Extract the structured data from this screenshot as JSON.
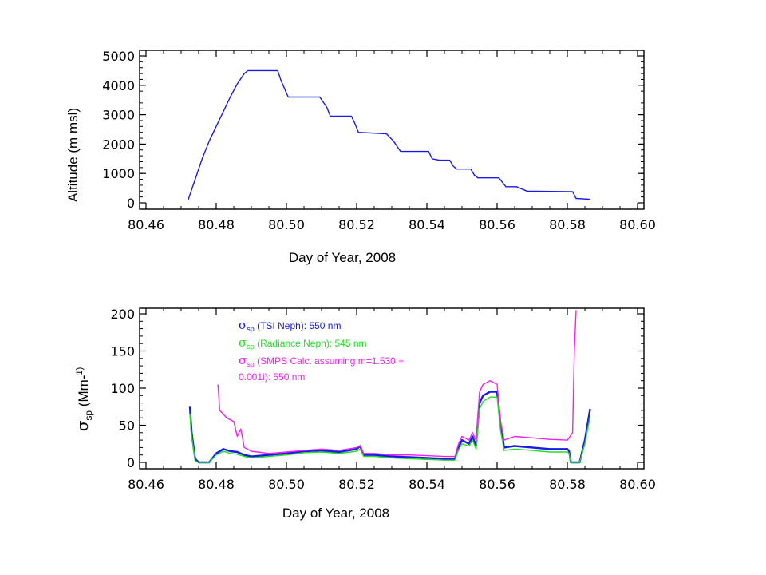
{
  "colors": {
    "tsi": "#1a1ae6",
    "radiance": "#22dd22",
    "smps": "#ee22ee",
    "altitude": "#1a1ae6"
  },
  "chart_data": [
    {
      "type": "line",
      "xlabel": "Day of Year, 2008",
      "ylabel": "Altitude (m msl)",
      "xlim": [
        80.46,
        80.6
      ],
      "ylim": [
        0,
        5000
      ],
      "xticks": [
        "80.46",
        "80.48",
        "80.50",
        "80.52",
        "80.54",
        "80.56",
        "80.58",
        "80.60"
      ],
      "yticks": [
        "0",
        "1000",
        "2000",
        "3000",
        "4000",
        "5000"
      ],
      "series": [
        {
          "x": [
            80.472,
            80.474,
            80.476,
            80.478,
            80.48,
            80.482,
            80.484,
            80.486,
            80.488,
            80.489,
            80.4895,
            80.4975,
            80.4985,
            80.5005,
            80.5015,
            80.5095,
            80.5115,
            80.5125,
            80.5185,
            80.5195,
            80.5205,
            80.5285,
            80.5305,
            80.5325,
            80.5405,
            80.5415,
            80.5435,
            80.5465,
            80.5475,
            80.5485,
            80.5525,
            80.5535,
            80.5545,
            80.5605,
            80.5625,
            80.5655,
            80.5685,
            80.5805,
            80.5815,
            80.5825,
            80.5865
          ],
          "y": [
            100,
            800,
            1500,
            2100,
            2600,
            3100,
            3600,
            4050,
            4400,
            4500,
            4500,
            4500,
            4150,
            3600,
            3600,
            3600,
            3250,
            2950,
            2950,
            2700,
            2400,
            2350,
            2100,
            1750,
            1750,
            1500,
            1450,
            1450,
            1250,
            1150,
            1150,
            950,
            850,
            850,
            550,
            550,
            400,
            380,
            380,
            150,
            120
          ]
        }
      ]
    },
    {
      "type": "line",
      "xlabel": "Day of Year, 2008",
      "ylabel": "σsp (Mm-1)",
      "xlim": [
        80.46,
        80.6
      ],
      "ylim": [
        0,
        200
      ],
      "xticks": [
        "80.46",
        "80.48",
        "80.50",
        "80.52",
        "80.54",
        "80.56",
        "80.58",
        "80.60"
      ],
      "yticks": [
        "0",
        "50",
        "100",
        "150",
        "200"
      ],
      "legend": [
        {
          "sym": "σ",
          "sub": "sp",
          "text": " (TSI Neph):  550 nm"
        },
        {
          "sym": "σ",
          "sub": "sp",
          "text": " (Radiance Neph):  545 nm"
        },
        {
          "sym": "σ",
          "sub": "sp",
          "text": " (SMPS Calc. assuming m=1.530 +"
        },
        {
          "sym": "",
          "sub": "",
          "text": "0.001i):  550 nm"
        }
      ],
      "series": [
        {
          "x": [
            80.4725,
            80.473,
            80.474,
            80.475,
            80.4765,
            80.478,
            80.48,
            80.482,
            80.484,
            80.486,
            80.488,
            80.49,
            80.495,
            80.5,
            80.505,
            80.51,
            80.515,
            80.52,
            80.521,
            80.522,
            80.525,
            80.53,
            80.535,
            80.54,
            80.545,
            80.548,
            80.549,
            80.55,
            80.552,
            80.553,
            80.554,
            80.555,
            80.556,
            80.558,
            80.56,
            80.561,
            80.562,
            80.565,
            80.57,
            80.575,
            80.58,
            80.5805,
            80.581,
            80.5835,
            80.585,
            80.5865
          ],
          "y": [
            75,
            40,
            5,
            0,
            0,
            0,
            12,
            18,
            15,
            14,
            10,
            8,
            10,
            12,
            15,
            16,
            14,
            18,
            22,
            10,
            10,
            8,
            7,
            6,
            5,
            5,
            20,
            30,
            25,
            35,
            22,
            80,
            90,
            95,
            95,
            50,
            20,
            22,
            20,
            18,
            18,
            15,
            0,
            0,
            30,
            72
          ]
        },
        {
          "x": [
            80.4725,
            80.473,
            80.474,
            80.475,
            80.4765,
            80.478,
            80.48,
            80.482,
            80.484,
            80.486,
            80.488,
            80.49,
            80.495,
            80.5,
            80.505,
            80.51,
            80.515,
            80.52,
            80.521,
            80.522,
            80.525,
            80.53,
            80.535,
            80.54,
            80.545,
            80.548,
            80.549,
            80.55,
            80.552,
            80.553,
            80.554,
            80.555,
            80.556,
            80.558,
            80.56,
            80.561,
            80.562,
            80.565,
            80.57,
            80.575,
            80.58,
            80.5805,
            80.581,
            80.5835,
            80.585,
            80.5865
          ],
          "y": [
            65,
            35,
            2,
            0,
            0,
            0,
            10,
            15,
            12,
            11,
            8,
            6,
            8,
            10,
            13,
            14,
            12,
            15,
            18,
            8,
            8,
            6,
            5,
            4,
            3,
            3,
            17,
            25,
            22,
            30,
            18,
            72,
            82,
            88,
            88,
            42,
            16,
            18,
            16,
            14,
            14,
            12,
            0,
            0,
            25,
            62
          ]
        },
        {
          "x": [
            80.4805,
            80.481,
            80.483,
            80.485,
            80.486,
            80.487,
            80.488,
            80.49,
            80.495,
            80.5,
            80.505,
            80.51,
            80.515,
            80.52,
            80.521,
            80.522,
            80.525,
            80.53,
            80.535,
            80.54,
            80.545,
            80.548,
            80.549,
            80.55,
            80.552,
            80.553,
            80.554,
            80.555,
            80.556,
            80.558,
            80.56,
            80.561,
            80.562,
            80.565,
            80.57,
            80.575,
            80.58,
            80.5815,
            80.582,
            80.5825
          ],
          "y": [
            105,
            70,
            60,
            55,
            35,
            45,
            20,
            15,
            12,
            14,
            16,
            18,
            16,
            20,
            22,
            12,
            12,
            10,
            10,
            9,
            8,
            8,
            25,
            35,
            30,
            40,
            30,
            95,
            105,
            110,
            105,
            55,
            30,
            35,
            33,
            31,
            30,
            40,
            150,
            205
          ]
        }
      ]
    }
  ]
}
